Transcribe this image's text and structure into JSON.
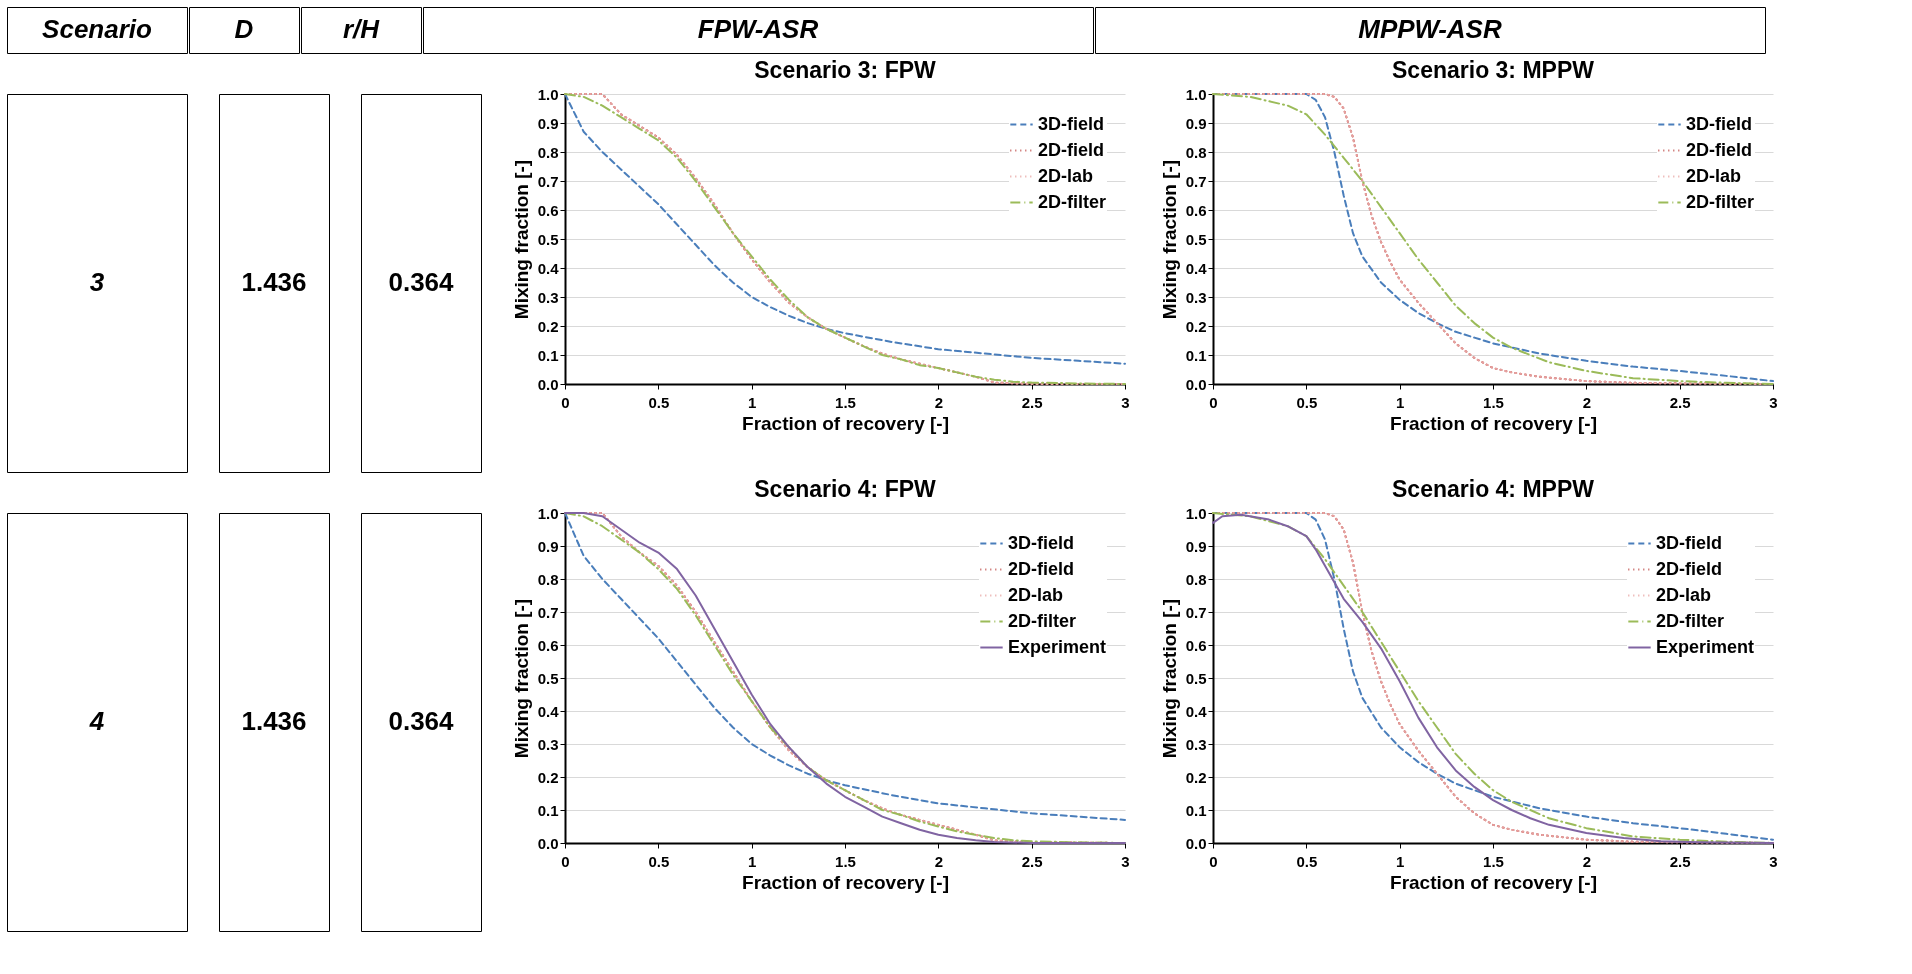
{
  "chart_data": [
    {
      "type": "other",
      "annotations": [
        "Scenario",
        "D",
        "r/H",
        "FPW-ASR",
        "MPPW-ASR",
        "3",
        "1.436",
        "0.364",
        "4",
        "1.436",
        "0.364"
      ]
    },
    {
      "type": "line",
      "title": "Scenario 3: FPW",
      "xlabel": "Fraction of recovery [-]",
      "ylabel": "Mixing fraction [-]",
      "xlim": [
        0,
        3
      ],
      "ylim": [
        0,
        1
      ],
      "xticks": [
        0,
        0.5,
        1,
        1.5,
        2,
        2.5,
        3
      ],
      "yticks": [
        {
          "value": 0,
          "label": "0.0"
        },
        {
          "value": 0.1,
          "label": "0.1"
        },
        {
          "value": 0.2,
          "label": "0.2"
        },
        {
          "value": 0.3,
          "label": "0.3"
        },
        {
          "value": 0.4,
          "label": "0.4"
        },
        {
          "value": 0.5,
          "label": "0.5"
        },
        {
          "value": 0.6,
          "label": "0.6"
        },
        {
          "value": 0.7,
          "label": "0.7"
        },
        {
          "value": 0.8,
          "label": "0.8"
        },
        {
          "value": 0.9,
          "label": "0.9"
        },
        {
          "value": 1,
          "label": "1.0"
        }
      ],
      "grid": "y",
      "legend": "top right",
      "marker": "none",
      "series": [
        {
          "name": "3D-field",
          "color": "#4a7ebb",
          "line_style": "dashed",
          "x": [
            0,
            0.1,
            0.2,
            0.3,
            0.4,
            0.5,
            0.6,
            0.7,
            0.8,
            0.9,
            1.0,
            1.1,
            1.2,
            1.3,
            1.4,
            1.5,
            1.75,
            2.0,
            2.25,
            2.5,
            2.75,
            3.0
          ],
          "values": [
            1.0,
            0.87,
            0.8,
            0.74,
            0.68,
            0.62,
            0.55,
            0.48,
            0.41,
            0.35,
            0.3,
            0.265,
            0.235,
            0.21,
            0.19,
            0.175,
            0.145,
            0.12,
            0.105,
            0.09,
            0.08,
            0.07
          ]
        },
        {
          "name": "2D-field",
          "color": "#c0504d",
          "line_style": "dotted",
          "x": [
            0,
            0.1,
            0.2,
            0.3,
            0.4,
            0.5,
            0.6,
            0.7,
            0.8,
            0.9,
            1.0,
            1.1,
            1.2,
            1.3,
            1.4,
            1.5,
            1.6,
            1.7,
            1.8,
            1.9,
            2.0,
            2.1,
            2.2,
            2.3,
            2.5,
            3.0
          ],
          "values": [
            1.0,
            1.0,
            1.0,
            0.93,
            0.89,
            0.85,
            0.79,
            0.71,
            0.62,
            0.52,
            0.43,
            0.35,
            0.28,
            0.23,
            0.19,
            0.16,
            0.13,
            0.105,
            0.085,
            0.07,
            0.055,
            0.04,
            0.025,
            0.005,
            0.0,
            0.0
          ]
        },
        {
          "name": "2D-lab",
          "color": "#e6a09e",
          "line_style": "dotted",
          "x": [
            0,
            0.1,
            0.2,
            0.3,
            0.4,
            0.5,
            0.6,
            0.7,
            0.8,
            0.9,
            1.0,
            1.1,
            1.2,
            1.3,
            1.4,
            1.5,
            1.6,
            1.7,
            1.8,
            1.9,
            2.0,
            2.1,
            2.2,
            2.3,
            2.5,
            3.0
          ],
          "values": [
            1.0,
            1.0,
            1.0,
            0.93,
            0.89,
            0.85,
            0.79,
            0.71,
            0.62,
            0.52,
            0.43,
            0.35,
            0.28,
            0.23,
            0.19,
            0.16,
            0.13,
            0.105,
            0.085,
            0.07,
            0.055,
            0.04,
            0.025,
            0.005,
            0.0,
            0.0
          ]
        },
        {
          "name": "2D-filter",
          "color": "#9bbb59",
          "line_style": "dashdot",
          "x": [
            0,
            0.1,
            0.2,
            0.3,
            0.4,
            0.5,
            0.6,
            0.7,
            0.8,
            0.9,
            1.0,
            1.1,
            1.2,
            1.3,
            1.4,
            1.5,
            1.6,
            1.7,
            1.8,
            1.9,
            2.0,
            2.1,
            2.2,
            2.3,
            2.4,
            2.5,
            2.75,
            3.0
          ],
          "values": [
            1.0,
            0.99,
            0.96,
            0.92,
            0.88,
            0.84,
            0.78,
            0.7,
            0.61,
            0.52,
            0.44,
            0.36,
            0.29,
            0.23,
            0.19,
            0.16,
            0.13,
            0.1,
            0.085,
            0.065,
            0.055,
            0.04,
            0.025,
            0.015,
            0.008,
            0.005,
            0.002,
            0.0
          ]
        }
      ]
    },
    {
      "type": "line",
      "title": "Scenario 3: MPPW",
      "xlabel": "Fraction of recovery [-]",
      "ylabel": "Mixing fraction [-]",
      "xlim": [
        0,
        3
      ],
      "ylim": [
        0,
        1
      ],
      "xticks": [
        0,
        0.5,
        1,
        1.5,
        2,
        2.5,
        3
      ],
      "yticks": [
        {
          "value": 0,
          "label": "0.0"
        },
        {
          "value": 0.1,
          "label": "0.1"
        },
        {
          "value": 0.2,
          "label": "0.2"
        },
        {
          "value": 0.3,
          "label": "0.3"
        },
        {
          "value": 0.4,
          "label": "0.4"
        },
        {
          "value": 0.5,
          "label": "0.5"
        },
        {
          "value": 0.6,
          "label": "0.6"
        },
        {
          "value": 0.7,
          "label": "0.7"
        },
        {
          "value": 0.8,
          "label": "0.8"
        },
        {
          "value": 0.9,
          "label": "0.9"
        },
        {
          "value": 1,
          "label": "1.0"
        }
      ],
      "grid": "y",
      "legend": "top right",
      "marker": "none",
      "series": [
        {
          "name": "3D-field",
          "color": "#4a7ebb",
          "line_style": "dashed",
          "x": [
            0,
            0.5,
            0.55,
            0.6,
            0.65,
            0.7,
            0.75,
            0.8,
            0.9,
            1.0,
            1.1,
            1.2,
            1.3,
            1.4,
            1.5,
            1.75,
            2.0,
            2.25,
            2.5,
            2.75,
            3.0
          ],
          "values": [
            1.0,
            1.0,
            0.98,
            0.92,
            0.8,
            0.65,
            0.52,
            0.44,
            0.35,
            0.29,
            0.245,
            0.21,
            0.18,
            0.16,
            0.14,
            0.105,
            0.08,
            0.06,
            0.045,
            0.028,
            0.01
          ]
        },
        {
          "name": "2D-field",
          "color": "#c0504d",
          "line_style": "dotted",
          "x": [
            0,
            0.6,
            0.65,
            0.7,
            0.75,
            0.8,
            0.85,
            0.9,
            0.95,
            1.0,
            1.1,
            1.2,
            1.3,
            1.4,
            1.5,
            1.6,
            1.75,
            2.0,
            2.25,
            2.5,
            3.0
          ],
          "values": [
            1.0,
            1.0,
            0.99,
            0.95,
            0.85,
            0.7,
            0.58,
            0.49,
            0.42,
            0.36,
            0.28,
            0.21,
            0.14,
            0.09,
            0.055,
            0.04,
            0.025,
            0.01,
            0.004,
            0.002,
            0.0
          ]
        },
        {
          "name": "2D-lab",
          "color": "#e6a09e",
          "line_style": "dotted",
          "x": [
            0,
            0.6,
            0.65,
            0.7,
            0.75,
            0.8,
            0.85,
            0.9,
            0.95,
            1.0,
            1.1,
            1.2,
            1.3,
            1.4,
            1.5,
            1.6,
            1.75,
            2.0,
            2.25,
            2.5,
            3.0
          ],
          "values": [
            1.0,
            1.0,
            0.99,
            0.95,
            0.85,
            0.7,
            0.58,
            0.49,
            0.42,
            0.36,
            0.28,
            0.21,
            0.14,
            0.09,
            0.055,
            0.04,
            0.025,
            0.01,
            0.004,
            0.002,
            0.0
          ]
        },
        {
          "name": "2D-filter",
          "color": "#9bbb59",
          "line_style": "dashdot",
          "x": [
            0,
            0.2,
            0.4,
            0.5,
            0.6,
            0.7,
            0.8,
            0.9,
            1.0,
            1.1,
            1.2,
            1.3,
            1.4,
            1.5,
            1.6,
            1.7,
            1.8,
            2.0,
            2.25,
            2.5,
            2.75,
            3.0
          ],
          "values": [
            1.0,
            0.99,
            0.96,
            0.93,
            0.86,
            0.78,
            0.7,
            0.61,
            0.52,
            0.43,
            0.35,
            0.27,
            0.21,
            0.16,
            0.125,
            0.1,
            0.075,
            0.045,
            0.02,
            0.01,
            0.004,
            0.0
          ]
        }
      ]
    },
    {
      "type": "line",
      "title": "Scenario 4: FPW",
      "xlabel": "Fraction of recovery [-]",
      "ylabel": "Mixing fraction [-]",
      "xlim": [
        0,
        3
      ],
      "ylim": [
        0,
        1
      ],
      "xticks": [
        0,
        0.5,
        1,
        1.5,
        2,
        2.5,
        3
      ],
      "yticks": [
        {
          "value": 0,
          "label": "0.0"
        },
        {
          "value": 0.1,
          "label": "0.1"
        },
        {
          "value": 0.2,
          "label": "0.2"
        },
        {
          "value": 0.3,
          "label": "0.3"
        },
        {
          "value": 0.4,
          "label": "0.4"
        },
        {
          "value": 0.5,
          "label": "0.5"
        },
        {
          "value": 0.6,
          "label": "0.6"
        },
        {
          "value": 0.7,
          "label": "0.7"
        },
        {
          "value": 0.8,
          "label": "0.8"
        },
        {
          "value": 0.9,
          "label": "0.9"
        },
        {
          "value": 1,
          "label": "1.0"
        }
      ],
      "grid": "y",
      "legend": "top right",
      "marker": "none",
      "series": [
        {
          "name": "3D-field",
          "color": "#4a7ebb",
          "line_style": "dashed",
          "x": [
            0,
            0.1,
            0.2,
            0.3,
            0.4,
            0.5,
            0.6,
            0.7,
            0.8,
            0.9,
            1.0,
            1.1,
            1.2,
            1.3,
            1.4,
            1.5,
            1.75,
            2.0,
            2.25,
            2.5,
            2.75,
            3.0
          ],
          "values": [
            1.0,
            0.87,
            0.8,
            0.74,
            0.68,
            0.62,
            0.55,
            0.48,
            0.41,
            0.35,
            0.3,
            0.265,
            0.235,
            0.21,
            0.19,
            0.175,
            0.145,
            0.12,
            0.105,
            0.09,
            0.08,
            0.07
          ]
        },
        {
          "name": "2D-field",
          "color": "#c0504d",
          "line_style": "dotted",
          "x": [
            0,
            0.1,
            0.2,
            0.3,
            0.4,
            0.5,
            0.6,
            0.7,
            0.8,
            0.9,
            1.0,
            1.1,
            1.2,
            1.3,
            1.4,
            1.5,
            1.6,
            1.7,
            1.8,
            1.9,
            2.0,
            2.1,
            2.2,
            2.3,
            2.5,
            3.0
          ],
          "values": [
            1.0,
            1.0,
            1.0,
            0.93,
            0.88,
            0.84,
            0.78,
            0.7,
            0.61,
            0.52,
            0.43,
            0.35,
            0.28,
            0.23,
            0.19,
            0.16,
            0.13,
            0.105,
            0.085,
            0.07,
            0.055,
            0.04,
            0.025,
            0.008,
            0.002,
            0.0
          ]
        },
        {
          "name": "2D-lab",
          "color": "#e6a09e",
          "line_style": "dotted",
          "x": [
            0,
            0.1,
            0.2,
            0.3,
            0.4,
            0.5,
            0.6,
            0.7,
            0.8,
            0.9,
            1.0,
            1.1,
            1.2,
            1.3,
            1.4,
            1.5,
            1.6,
            1.7,
            1.8,
            1.9,
            2.0,
            2.1,
            2.2,
            2.3,
            2.5,
            3.0
          ],
          "values": [
            1.0,
            1.0,
            1.0,
            0.93,
            0.88,
            0.84,
            0.78,
            0.7,
            0.61,
            0.52,
            0.43,
            0.35,
            0.28,
            0.23,
            0.19,
            0.16,
            0.13,
            0.105,
            0.085,
            0.07,
            0.055,
            0.04,
            0.025,
            0.008,
            0.002,
            0.0
          ]
        },
        {
          "name": "2D-filter",
          "color": "#9bbb59",
          "line_style": "dashdot",
          "x": [
            0,
            0.1,
            0.2,
            0.3,
            0.4,
            0.5,
            0.6,
            0.7,
            0.8,
            0.9,
            1.0,
            1.1,
            1.2,
            1.3,
            1.4,
            1.5,
            1.6,
            1.7,
            1.8,
            1.9,
            2.0,
            2.1,
            2.2,
            2.3,
            2.4,
            2.5,
            2.75,
            3.0
          ],
          "values": [
            1.0,
            0.99,
            0.96,
            0.92,
            0.88,
            0.83,
            0.77,
            0.69,
            0.6,
            0.51,
            0.43,
            0.35,
            0.29,
            0.23,
            0.19,
            0.16,
            0.13,
            0.1,
            0.085,
            0.065,
            0.05,
            0.035,
            0.025,
            0.015,
            0.008,
            0.005,
            0.002,
            0.0
          ]
        },
        {
          "name": "Experiment",
          "color": "#8064a2",
          "line_style": "solid",
          "x": [
            0,
            0.1,
            0.2,
            0.3,
            0.4,
            0.5,
            0.6,
            0.7,
            0.8,
            0.9,
            1.0,
            1.1,
            1.2,
            1.3,
            1.4,
            1.5,
            1.6,
            1.7,
            1.8,
            1.9,
            2.0,
            2.1,
            2.2,
            2.3,
            2.5,
            3.0
          ],
          "values": [
            1.0,
            1.0,
            0.99,
            0.95,
            0.91,
            0.88,
            0.83,
            0.75,
            0.65,
            0.55,
            0.45,
            0.36,
            0.29,
            0.23,
            0.18,
            0.14,
            0.11,
            0.08,
            0.06,
            0.04,
            0.025,
            0.015,
            0.008,
            0.003,
            0.0,
            0.0
          ]
        }
      ]
    },
    {
      "type": "line",
      "title": "Scenario 4: MPPW",
      "xlabel": "Fraction of recovery [-]",
      "ylabel": "Mixing fraction [-]",
      "xlim": [
        0,
        3
      ],
      "ylim": [
        0,
        1
      ],
      "xticks": [
        0,
        0.5,
        1,
        1.5,
        2,
        2.5,
        3
      ],
      "yticks": [
        {
          "value": 0,
          "label": "0.0"
        },
        {
          "value": 0.1,
          "label": "0.1"
        },
        {
          "value": 0.2,
          "label": "0.2"
        },
        {
          "value": 0.3,
          "label": "0.3"
        },
        {
          "value": 0.4,
          "label": "0.4"
        },
        {
          "value": 0.5,
          "label": "0.5"
        },
        {
          "value": 0.6,
          "label": "0.6"
        },
        {
          "value": 0.7,
          "label": "0.7"
        },
        {
          "value": 0.8,
          "label": "0.8"
        },
        {
          "value": 0.9,
          "label": "0.9"
        },
        {
          "value": 1,
          "label": "1.0"
        }
      ],
      "grid": "y",
      "legend": "top right",
      "marker": "none",
      "series": [
        {
          "name": "3D-field",
          "color": "#4a7ebb",
          "line_style": "dashed",
          "x": [
            0,
            0.5,
            0.55,
            0.6,
            0.65,
            0.7,
            0.75,
            0.8,
            0.9,
            1.0,
            1.1,
            1.2,
            1.3,
            1.4,
            1.5,
            1.75,
            2.0,
            2.25,
            2.5,
            2.75,
            3.0
          ],
          "values": [
            1.0,
            1.0,
            0.98,
            0.92,
            0.8,
            0.65,
            0.52,
            0.44,
            0.35,
            0.29,
            0.245,
            0.21,
            0.18,
            0.16,
            0.14,
            0.105,
            0.08,
            0.06,
            0.045,
            0.028,
            0.01
          ]
        },
        {
          "name": "2D-field",
          "color": "#c0504d",
          "line_style": "dotted",
          "x": [
            0,
            0.6,
            0.65,
            0.7,
            0.75,
            0.8,
            0.85,
            0.9,
            0.95,
            1.0,
            1.1,
            1.2,
            1.3,
            1.4,
            1.5,
            1.6,
            1.75,
            2.0,
            2.25,
            2.5,
            3.0
          ],
          "values": [
            1.0,
            1.0,
            0.99,
            0.95,
            0.85,
            0.7,
            0.58,
            0.49,
            0.42,
            0.36,
            0.28,
            0.21,
            0.14,
            0.09,
            0.055,
            0.04,
            0.025,
            0.01,
            0.004,
            0.002,
            0.0
          ]
        },
        {
          "name": "2D-lab",
          "color": "#e6a09e",
          "line_style": "dotted",
          "x": [
            0,
            0.6,
            0.65,
            0.7,
            0.75,
            0.8,
            0.85,
            0.9,
            0.95,
            1.0,
            1.1,
            1.2,
            1.3,
            1.4,
            1.5,
            1.6,
            1.75,
            2.0,
            2.25,
            2.5,
            3.0
          ],
          "values": [
            1.0,
            1.0,
            0.99,
            0.95,
            0.85,
            0.7,
            0.58,
            0.49,
            0.42,
            0.36,
            0.28,
            0.21,
            0.14,
            0.09,
            0.055,
            0.04,
            0.025,
            0.01,
            0.004,
            0.002,
            0.0
          ]
        },
        {
          "name": "2D-filter",
          "color": "#9bbb59",
          "line_style": "dashdot",
          "x": [
            0,
            0.2,
            0.4,
            0.5,
            0.6,
            0.7,
            0.8,
            0.9,
            1.0,
            1.1,
            1.2,
            1.3,
            1.4,
            1.5,
            1.6,
            1.7,
            1.8,
            2.0,
            2.25,
            2.5,
            2.75,
            3.0
          ],
          "values": [
            1.0,
            0.99,
            0.96,
            0.93,
            0.86,
            0.78,
            0.7,
            0.61,
            0.52,
            0.43,
            0.35,
            0.27,
            0.21,
            0.16,
            0.125,
            0.1,
            0.075,
            0.045,
            0.02,
            0.01,
            0.004,
            0.0
          ]
        },
        {
          "name": "Experiment",
          "color": "#8064a2",
          "line_style": "solid",
          "x": [
            0,
            0.05,
            0.15,
            0.3,
            0.4,
            0.5,
            0.55,
            0.6,
            0.65,
            0.7,
            0.8,
            0.9,
            1.0,
            1.1,
            1.2,
            1.3,
            1.4,
            1.5,
            1.6,
            1.7,
            1.8,
            2.0,
            2.2,
            2.4,
            2.6,
            3.0
          ],
          "values": [
            0.97,
            0.99,
            0.995,
            0.98,
            0.96,
            0.93,
            0.89,
            0.84,
            0.79,
            0.74,
            0.67,
            0.59,
            0.49,
            0.38,
            0.29,
            0.22,
            0.17,
            0.13,
            0.1,
            0.075,
            0.055,
            0.03,
            0.015,
            0.005,
            0.002,
            0.0
          ]
        }
      ]
    }
  ]
}
